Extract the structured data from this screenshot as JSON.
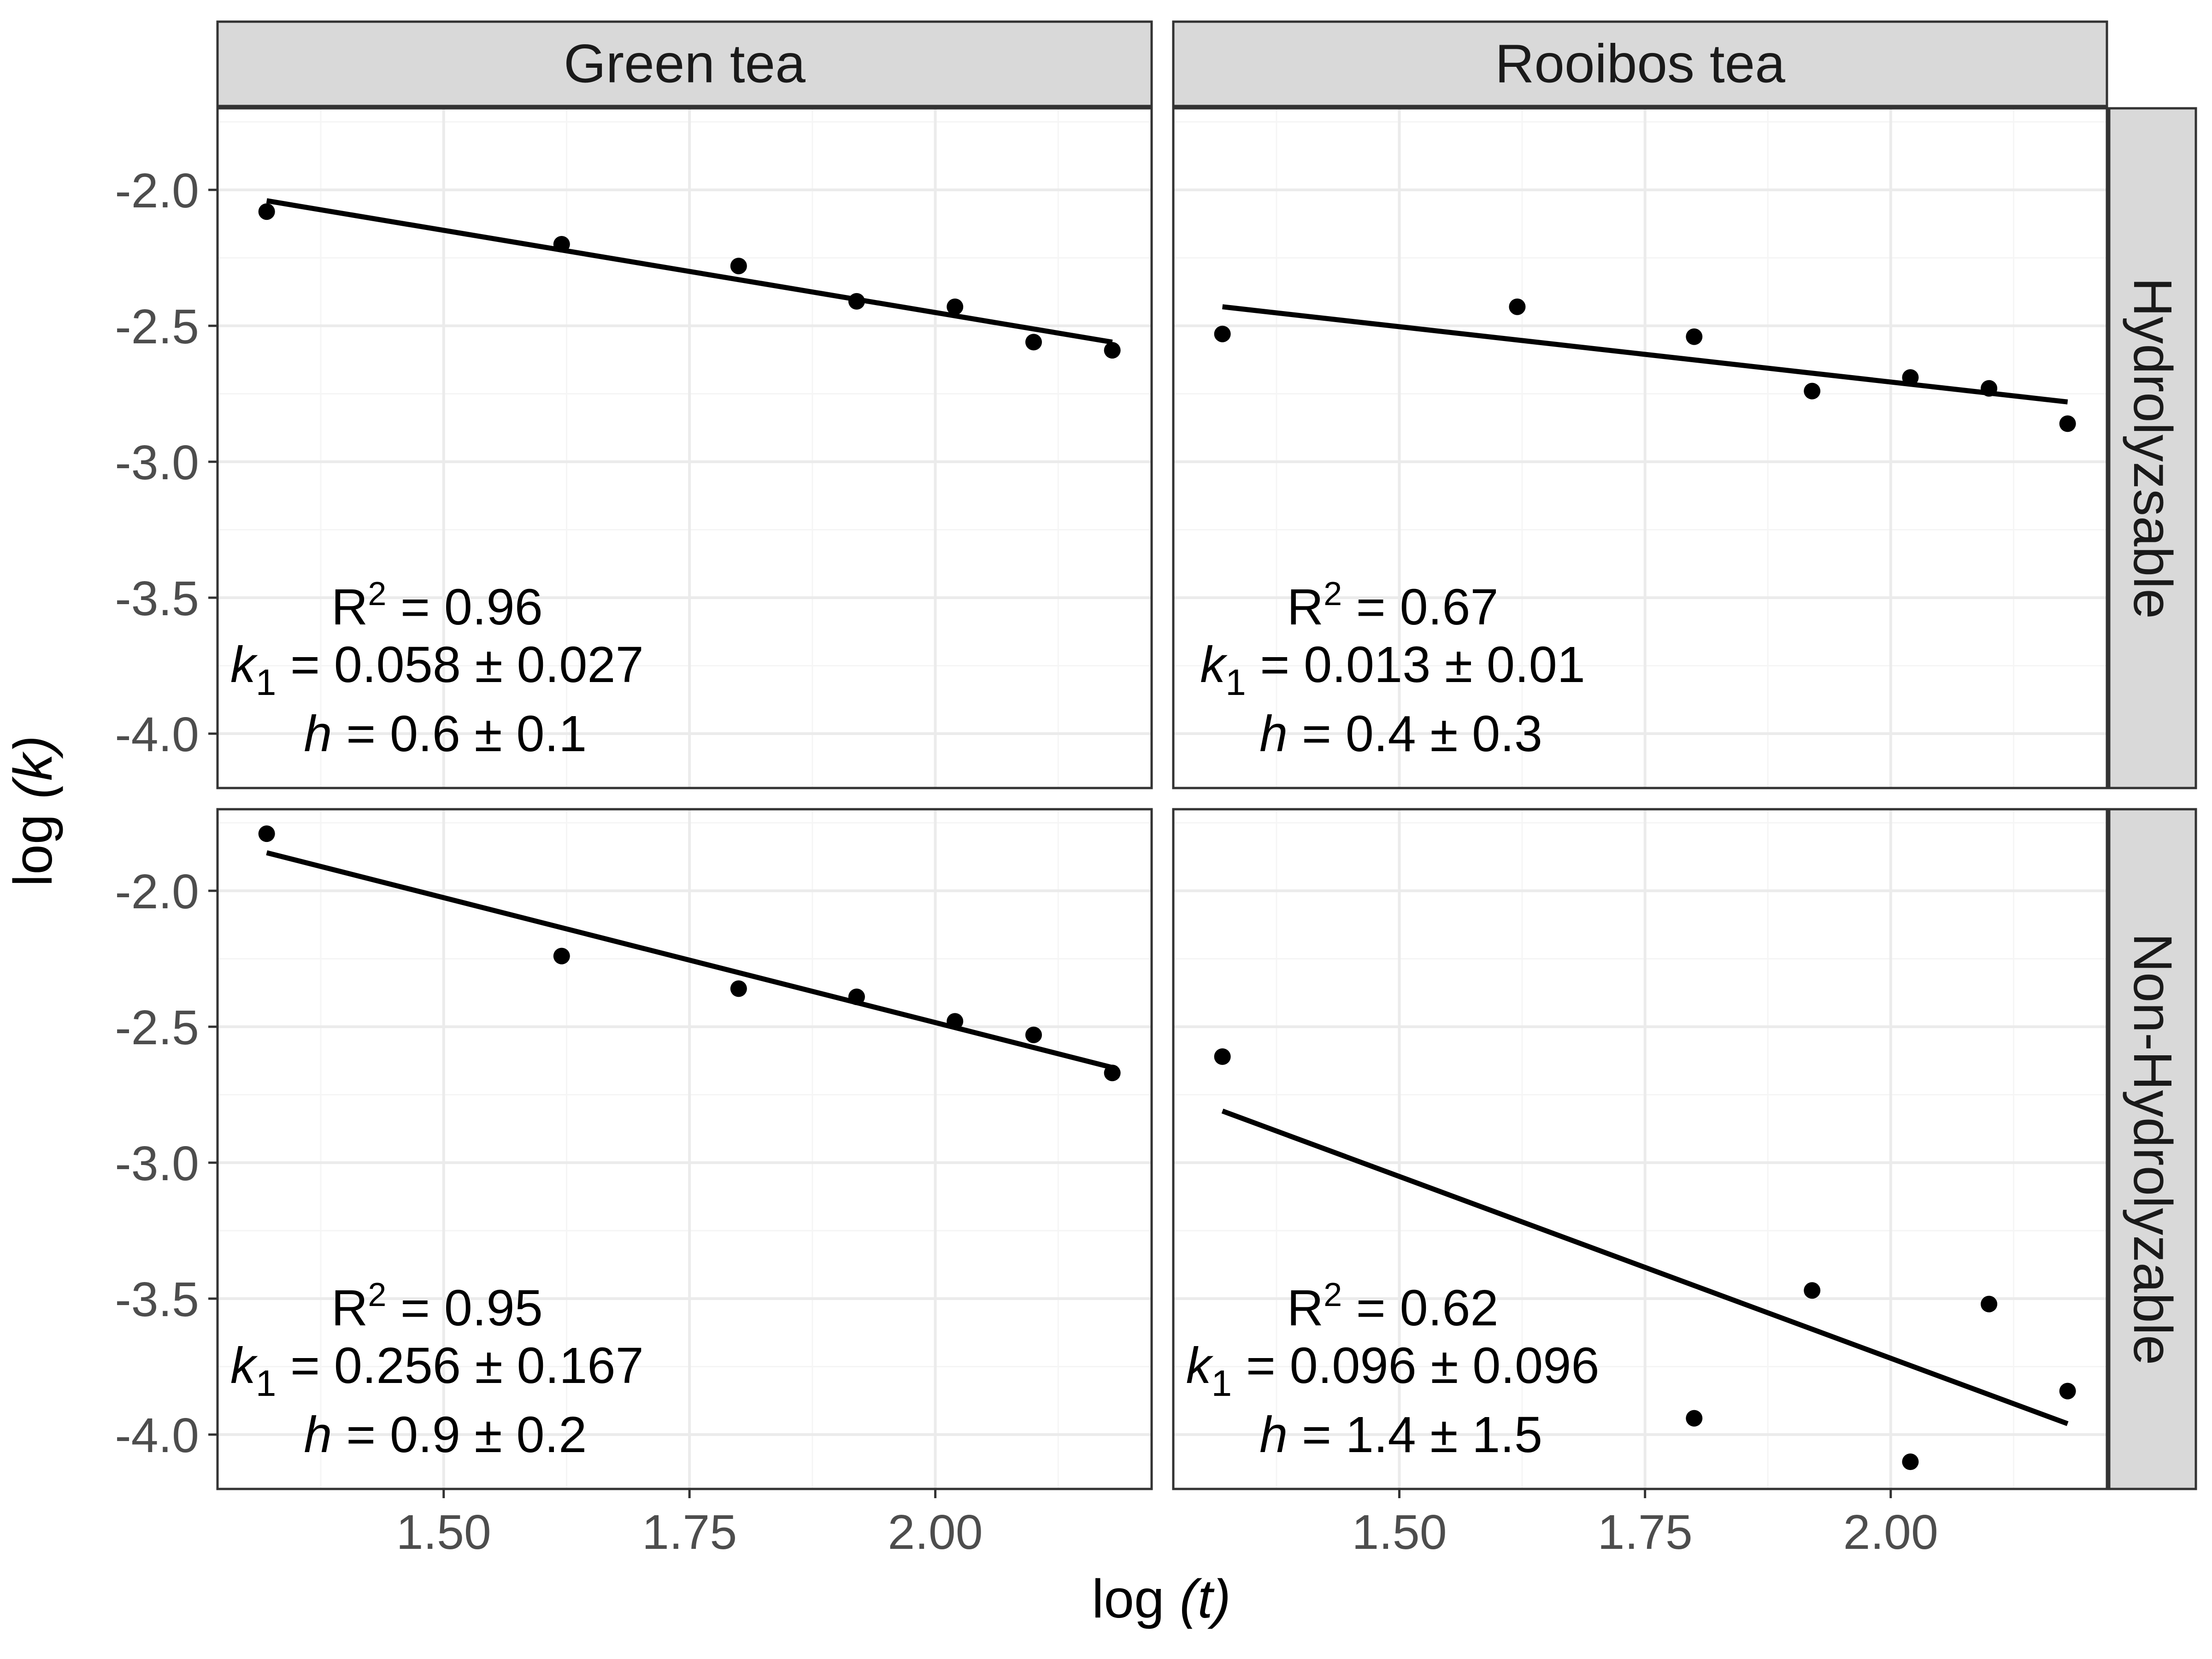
{
  "chart_data": {
    "type": "scatter",
    "xlabel_prefix": "log ",
    "xlabel_var": "(t)",
    "ylabel_prefix": "log ",
    "ylabel_var": "(k)",
    "xlim": [
      1.27,
      2.22
    ],
    "ylim": [
      -4.2,
      -1.7
    ],
    "x_ticks": [
      1.5,
      1.75,
      2.0
    ],
    "x_tick_labels": [
      "1.50",
      "1.75",
      "2.00"
    ],
    "y_ticks": [
      -4.0,
      -3.5,
      -3.0,
      -2.5,
      -2.0
    ],
    "y_tick_labels": [
      "-4.0",
      "-3.5",
      "-3.0",
      "-2.5",
      "-2.0"
    ],
    "grid": true,
    "columns": [
      "Green tea",
      "Rooibos tea"
    ],
    "rows": [
      "Hydrolyzsable",
      "Non-Hydrolyzable"
    ],
    "panels": [
      {
        "column": "Green tea",
        "row": "Hydrolyzsable",
        "points": [
          [
            1.32,
            -2.08
          ],
          [
            1.62,
            -2.2
          ],
          [
            1.8,
            -2.28
          ],
          [
            1.92,
            -2.41
          ],
          [
            2.02,
            -2.43
          ],
          [
            2.1,
            -2.56
          ],
          [
            2.18,
            -2.59
          ]
        ],
        "fit": [
          [
            1.32,
            -2.04
          ],
          [
            2.18,
            -2.56
          ]
        ],
        "r2": "0.96",
        "k1": "0.058",
        "k1_err": "0.027",
        "h": "0.6",
        "h_err": "0.1"
      },
      {
        "column": "Rooibos tea",
        "row": "Hydrolyzsable",
        "points": [
          [
            1.32,
            -2.53
          ],
          [
            1.62,
            -2.43
          ],
          [
            1.8,
            -2.54
          ],
          [
            1.92,
            -2.74
          ],
          [
            2.02,
            -2.69
          ],
          [
            2.1,
            -2.73
          ],
          [
            2.18,
            -2.86
          ]
        ],
        "fit": [
          [
            1.32,
            -2.43
          ],
          [
            2.18,
            -2.78
          ]
        ],
        "r2": "0.67",
        "k1": "0.013",
        "k1_err": "0.01",
        "h": "0.4",
        "h_err": "0.3"
      },
      {
        "column": "Green tea",
        "row": "Non-Hydrolyzable",
        "points": [
          [
            1.32,
            -1.79
          ],
          [
            1.62,
            -2.24
          ],
          [
            1.8,
            -2.36
          ],
          [
            1.92,
            -2.39
          ],
          [
            2.02,
            -2.48
          ],
          [
            2.1,
            -2.53
          ],
          [
            2.18,
            -2.67
          ]
        ],
        "fit": [
          [
            1.32,
            -1.86
          ],
          [
            2.18,
            -2.65
          ]
        ],
        "r2": "0.95",
        "k1": "0.256",
        "k1_err": "0.167",
        "h": "0.9",
        "h_err": "0.2"
      },
      {
        "column": "Rooibos tea",
        "row": "Non-Hydrolyzable",
        "points": [
          [
            1.32,
            -2.61
          ],
          [
            1.8,
            -3.94
          ],
          [
            1.92,
            -3.47
          ],
          [
            2.02,
            -4.1
          ],
          [
            2.1,
            -3.52
          ],
          [
            2.18,
            -3.84
          ]
        ],
        "fit": [
          [
            1.32,
            -2.81
          ],
          [
            2.18,
            -3.96
          ]
        ],
        "r2": "0.62",
        "k1": "0.096",
        "k1_err": "0.096",
        "h": "1.4",
        "h_err": "1.5"
      }
    ]
  },
  "colors": {
    "panel_border": "#333333",
    "grid_major": "#ebebeb",
    "grid_minor": "#f5f5f5",
    "strip_fill": "#d9d9d9",
    "ink": "#000000",
    "tick_text": "#4d4d4d"
  }
}
